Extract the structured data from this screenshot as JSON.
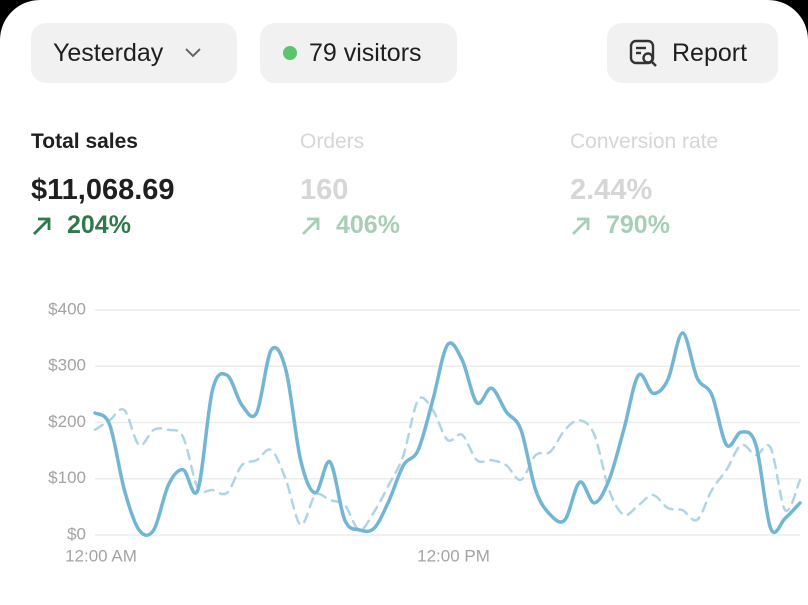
{
  "header": {
    "date_button": "Yesterday",
    "visitors": "79 visitors",
    "report_button": "Report"
  },
  "metrics": [
    {
      "label": "Total sales",
      "value": "$11,068.69",
      "change": "204%"
    },
    {
      "label": "Orders",
      "value": "160",
      "change": "406%"
    },
    {
      "label": "Conversion rate",
      "value": "2.44%",
      "change": "790%"
    }
  ],
  "chart_data": {
    "type": "line",
    "x": [
      0,
      0.5,
      1,
      1.5,
      2,
      2.5,
      3,
      3.5,
      4,
      4.5,
      5,
      5.5,
      6,
      6.5,
      7,
      7.5,
      8,
      8.5,
      9,
      9.5,
      10,
      10.5,
      11,
      11.5,
      12,
      12.5,
      13,
      13.5,
      14,
      14.5,
      15,
      15.5,
      16,
      16.5,
      17,
      17.5,
      18,
      18.5,
      19,
      19.5,
      20,
      20.5,
      21,
      21.5,
      22,
      22.5,
      23,
      23.5,
      24
    ],
    "xlim": [
      0,
      24
    ],
    "xticks": [
      {
        "value": 0,
        "label": "12:00 AM"
      },
      {
        "value": 12,
        "label": "12:00 PM"
      }
    ],
    "ylim": [
      0,
      400
    ],
    "yticks": [
      {
        "value": 0,
        "label": "$0"
      },
      {
        "value": 100,
        "label": "$100"
      },
      {
        "value": 200,
        "label": "$200"
      },
      {
        "value": 300,
        "label": "$300"
      },
      {
        "value": 400,
        "label": "$400"
      }
    ],
    "grid": true,
    "series": [
      {
        "color": "#72b6d3",
        "dash": "solid",
        "values": [
          217,
          196,
          80,
          9,
          9,
          89,
          116,
          80,
          258,
          284,
          231,
          217,
          329,
          293,
          133,
          75,
          130,
          27,
          9,
          12,
          60,
          124,
          151,
          240,
          338,
          311,
          235,
          261,
          219,
          187,
          80,
          36,
          27,
          94,
          57,
          98,
          187,
          284,
          252,
          276,
          359,
          279,
          249,
          160,
          183,
          160,
          12,
          30,
          57
        ]
      },
      {
        "color": "#aed5e6",
        "dash": "dashed",
        "values": [
          187,
          204,
          222,
          160,
          187,
          187,
          174,
          84,
          80,
          75,
          124,
          133,
          151,
          98,
          18,
          71,
          62,
          53,
          9,
          41,
          89,
          142,
          240,
          222,
          169,
          178,
          133,
          133,
          124,
          98,
          142,
          148,
          187,
          204,
          178,
          80,
          36,
          53,
          71,
          48,
          44,
          27,
          80,
          116,
          160,
          142,
          155,
          44,
          98
        ]
      }
    ]
  }
}
